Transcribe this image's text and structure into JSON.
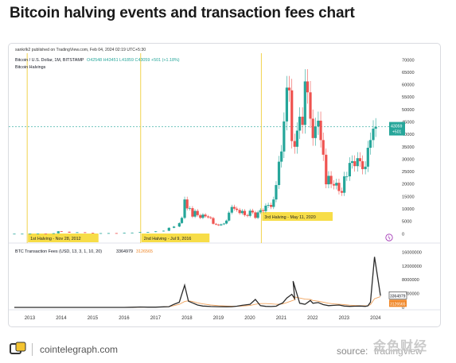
{
  "headline": "Bitcoin halving events and transaction fees chart",
  "chart_data": {
    "type": "candlestick",
    "publisher_line": "sankrlk2 published on TradingView.com, Feb 04, 2024 02:19 UTC+5:30",
    "symbol_line": "Bitcoin / U.S. Dollar, 1M, BITSTAMP",
    "ohlc_readout": {
      "O": "42548",
      "H": "43451",
      "L": "41859",
      "C": "43059",
      "change": "+501 (+1.18%)"
    },
    "halvings_label": "Bitcoin Halvings",
    "price_axis": {
      "ticks": [
        "70000",
        "65000",
        "60000",
        "55000",
        "50000",
        "45000",
        "40000",
        "35000",
        "30000",
        "25000",
        "20000",
        "15000",
        "10000",
        "5000",
        "0"
      ],
      "ylim": [
        -1500,
        72000
      ]
    },
    "price_tag": {
      "value": "43059",
      "sub": "+501"
    },
    "x_axis": {
      "ticks": [
        "2013",
        "2014",
        "2015",
        "2016",
        "2017",
        "2018",
        "2019",
        "2020",
        "2021",
        "2022",
        "2023",
        "2024"
      ],
      "xlim": [
        2012.45,
        2024.35
      ]
    },
    "halvings": [
      {
        "label": "1st Halving - Nov 28, 2012",
        "date": 2012.91
      },
      {
        "label": "2nd Halving - Jul 9, 2016",
        "date": 2016.52
      },
      {
        "label": "3rd Halving - May 11, 2020",
        "date": 2020.36
      }
    ],
    "price_series": {
      "x": [
        2012.5,
        2012.75,
        2013,
        2013.25,
        2013.5,
        2013.75,
        2013.9,
        2014,
        2014.25,
        2014.5,
        2014.75,
        2015,
        2015.25,
        2015.5,
        2015.75,
        2016,
        2016.25,
        2016.5,
        2016.75,
        2017,
        2017.25,
        2017.42,
        2017.58,
        2017.75,
        2017.83,
        2017.92,
        2018,
        2018.08,
        2018.17,
        2018.25,
        2018.33,
        2018.42,
        2018.5,
        2018.58,
        2018.67,
        2018.75,
        2018.83,
        2018.92,
        2019,
        2019.08,
        2019.17,
        2019.25,
        2019.33,
        2019.42,
        2019.5,
        2019.58,
        2019.67,
        2019.75,
        2019.83,
        2019.92,
        2020,
        2020.08,
        2020.17,
        2020.25,
        2020.33,
        2020.42,
        2020.5,
        2020.58,
        2020.67,
        2020.75,
        2020.83,
        2020.92,
        2021,
        2021.08,
        2021.17,
        2021.25,
        2021.33,
        2021.42,
        2021.5,
        2021.58,
        2021.67,
        2021.75,
        2021.83,
        2021.92,
        2022,
        2022.08,
        2022.17,
        2022.25,
        2022.33,
        2022.42,
        2022.5,
        2022.58,
        2022.67,
        2022.75,
        2022.83,
        2022.92,
        2023,
        2023.08,
        2023.17,
        2023.25,
        2023.33,
        2023.42,
        2023.5,
        2023.58,
        2023.67,
        2023.75,
        2023.83,
        2023.92,
        2024
      ],
      "close": [
        10,
        12,
        20,
        100,
        90,
        200,
        1000,
        800,
        450,
        600,
        380,
        220,
        240,
        260,
        240,
        430,
        450,
        650,
        700,
        970,
        1200,
        2400,
        2900,
        4300,
        6400,
        13800,
        10200,
        10300,
        6900,
        9200,
        7500,
        6400,
        7700,
        7000,
        6600,
        6300,
        4000,
        3700,
        3400,
        3800,
        4100,
        5300,
        8500,
        10800,
        10100,
        9600,
        8300,
        9200,
        7500,
        7200,
        9300,
        8600,
        6400,
        8600,
        9500,
        9100,
        11300,
        11600,
        10800,
        13800,
        19600,
        29000,
        33100,
        45200,
        58800,
        57700,
        37300,
        35000,
        41500,
        47100,
        43800,
        61300,
        56900,
        46300,
        38500,
        43200,
        45500,
        37700,
        31800,
        19900,
        23300,
        20000,
        19400,
        20500,
        17200,
        16500,
        23100,
        23100,
        28500,
        29200,
        27200,
        30400,
        29200,
        26000,
        27000,
        34600,
        37700,
        42300,
        43059
      ]
    },
    "fees_panel": {
      "label": "BTC Transaction Fees (USD, 13, 3, 1, 10, 20)",
      "value_1": "3364979",
      "value_2": "3126565",
      "ticks": [
        "16000000",
        "12000000",
        "8000000",
        "4000000",
        "0"
      ],
      "ylim": [
        0,
        17000000
      ],
      "fees": [
        0,
        0,
        0,
        0,
        0,
        0,
        0,
        0,
        50000,
        120000,
        80000,
        60000,
        150000,
        200000,
        900000,
        1500000,
        6400000,
        1800000,
        1300000,
        700000,
        400000,
        250000,
        200000,
        180000,
        200000,
        350000,
        600000,
        900000,
        2300000,
        500000,
        300000,
        250000,
        350000,
        800000,
        1300000,
        2700000,
        3800000,
        2600000,
        7600000,
        1200000,
        900000,
        2000000,
        1200000,
        1400000,
        800000,
        500000,
        600000,
        700000,
        400000,
        300000,
        350000,
        400000,
        300000,
        450000,
        1500000,
        14600000,
        3364979
      ],
      "fees_x": [
        2012.5,
        2013,
        2013.5,
        2014,
        2014.5,
        2015,
        2015.5,
        2016,
        2016.25,
        2016.5,
        2016.75,
        2017,
        2017.25,
        2017.42,
        2017.58,
        2017.75,
        2017.92,
        2018.04,
        2018.17,
        2018.33,
        2018.5,
        2018.75,
        2019,
        2019.25,
        2019.42,
        2019.58,
        2019.75,
        2020,
        2020.17,
        2020.33,
        2020.5,
        2020.67,
        2020.83,
        2020.92,
        2021.04,
        2021.17,
        2021.33,
        2021.42,
        2021.37,
        2021.58,
        2021.75,
        2021.92,
        2022,
        2022.17,
        2022.33,
        2022.5,
        2022.67,
        2022.83,
        2023,
        2023.17,
        2023.33,
        2023.5,
        2023.67,
        2023.75,
        2023.83,
        2023.96,
        2024.15
      ],
      "avg": [
        0,
        0,
        0,
        0,
        0,
        0,
        0,
        0,
        40000,
        80000,
        90000,
        100000,
        150000,
        250000,
        500000,
        900000,
        1700000,
        1900000,
        1700000,
        1300000,
        1000000,
        700000,
        500000,
        400000,
        350000,
        330000,
        400000,
        550000,
        900000,
        1100000,
        1100000,
        1000000,
        900000,
        900000,
        1000000,
        1400000,
        1900000,
        2200000,
        3100000,
        2700000,
        2400000,
        2300000,
        2000000,
        1800000,
        1500000,
        1200000,
        1000000,
        900000,
        800000,
        650000,
        550000,
        500000,
        450000,
        500000,
        800000,
        2500000,
        3126565
      ]
    },
    "colors": {
      "up": "#26a69a",
      "down": "#ef5350",
      "halving_line": "#f2d34e",
      "halving_badge": "#f7dd48",
      "fees_line": "#2b2b2b",
      "fees_avg": "#f0a35e",
      "price_tag": "#26a69a",
      "fees_tag_1": "#ffffff",
      "fees_tag_2": "#f0882a"
    }
  },
  "footer": {
    "site": "cointelegraph.com",
    "source_label": "source:",
    "source_value": "tradingview",
    "watermark": "金色财经"
  }
}
